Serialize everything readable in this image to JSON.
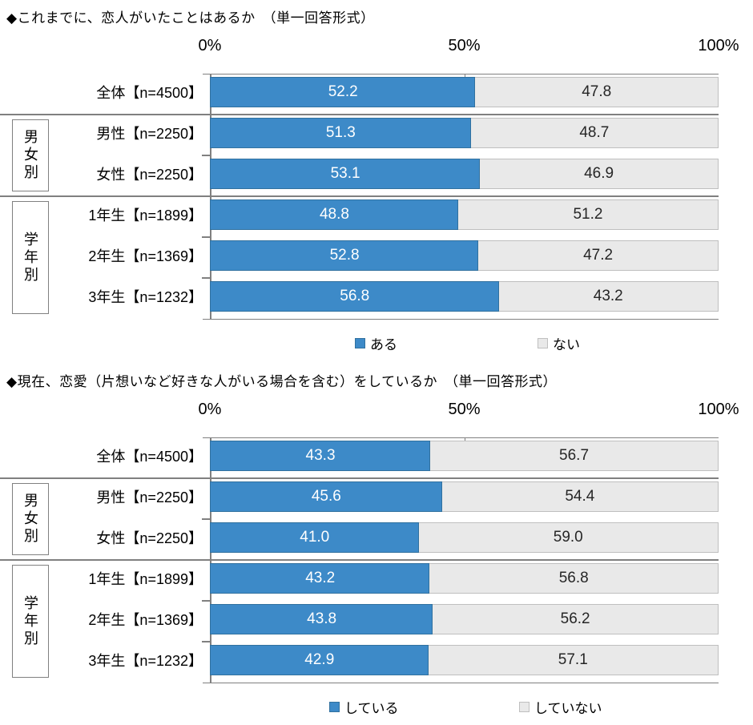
{
  "colors": {
    "primary_border": "#31719F",
    "secondary_border": "#BFBFBF",
    "axis_line": "#808080",
    "value_on_primary": "#FFFFFF",
    "value_on_secondary": "#262626",
    "text": "#000000",
    "background": "#FFFFFF"
  },
  "category_groups": [
    {
      "label": "男女別",
      "start_row": 1,
      "end_row": 2
    },
    {
      "label": "学年別",
      "start_row": 3,
      "end_row": 5
    }
  ],
  "chart_data": [
    {
      "type": "bar",
      "orientation": "horizontal",
      "stacked": true,
      "title": "◆これまでに、恋人がいたことはあるか　（単一回答形式）",
      "categories": [
        "全体【n=4500】",
        "男性【n=2250】",
        "女性【n=2250】",
        "1年生【n=1899】",
        "2年生【n=1369】",
        "3年生【n=1232】"
      ],
      "series": [
        {
          "name": "ある",
          "color": "#3D8AC8",
          "values": [
            52.2,
            51.3,
            53.1,
            48.8,
            52.8,
            56.8
          ]
        },
        {
          "name": "ない",
          "color": "#E9E9E9",
          "values": [
            47.8,
            48.7,
            46.9,
            51.2,
            47.2,
            43.2
          ]
        }
      ],
      "xlim": [
        0,
        100
      ],
      "x_ticks": [
        "0%",
        "50%",
        "100%"
      ],
      "legend_position": "bottom",
      "grid": false
    },
    {
      "type": "bar",
      "orientation": "horizontal",
      "stacked": true,
      "title": "◆現在、恋愛（片想いなど好きな人がいる場合を含む）をしているか　（単一回答形式）",
      "categories": [
        "全体【n=4500】",
        "男性【n=2250】",
        "女性【n=2250】",
        "1年生【n=1899】",
        "2年生【n=1369】",
        "3年生【n=1232】"
      ],
      "series": [
        {
          "name": "している",
          "color": "#3D8AC8",
          "values": [
            43.3,
            45.6,
            41.0,
            43.2,
            43.8,
            42.9
          ]
        },
        {
          "name": "していない",
          "color": "#E9E9E9",
          "values": [
            56.7,
            54.4,
            59.0,
            56.8,
            56.2,
            57.1
          ]
        }
      ],
      "xlim": [
        0,
        100
      ],
      "x_ticks": [
        "0%",
        "50%",
        "100%"
      ],
      "legend_position": "bottom",
      "grid": false
    }
  ]
}
